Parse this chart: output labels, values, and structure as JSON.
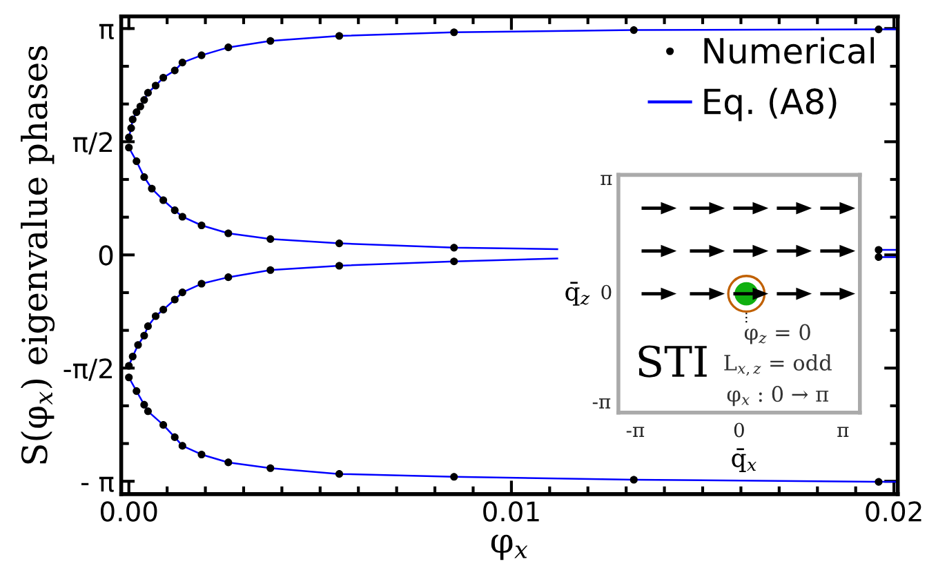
{
  "chart_data": [
    {
      "type": "scatter",
      "xlabel": "φ$_{x}$",
      "ylabel": "S(φ$_{x}$) eigenvalue phases",
      "xlim": [
        -0.0002,
        0.0201
      ],
      "ylim": [
        -3.32,
        3.31
      ],
      "xticks": [
        {
          "value": 0,
          "label": "0.00"
        },
        {
          "value": 0.001,
          "label": null
        },
        {
          "value": 0.002,
          "label": null
        },
        {
          "value": 0.003,
          "label": null
        },
        {
          "value": 0.004,
          "label": null
        },
        {
          "value": 0.005,
          "label": null
        },
        {
          "value": 0.006,
          "label": null
        },
        {
          "value": 0.007,
          "label": null
        },
        {
          "value": 0.008,
          "label": null
        },
        {
          "value": 0.009,
          "label": null
        },
        {
          "value": 0.01,
          "label": "0.01"
        },
        {
          "value": 0.011,
          "label": null
        },
        {
          "value": 0.012,
          "label": null
        },
        {
          "value": 0.013,
          "label": null
        },
        {
          "value": 0.014,
          "label": null
        },
        {
          "value": 0.015,
          "label": null
        },
        {
          "value": 0.016,
          "label": null
        },
        {
          "value": 0.017,
          "label": null
        },
        {
          "value": 0.018,
          "label": null
        },
        {
          "value": 0.019,
          "label": null
        },
        {
          "value": 0.02,
          "label": "0.02"
        }
      ],
      "yticks": [
        {
          "value": -3.1416,
          "label": "- π"
        },
        {
          "value": -2.618,
          "label": null
        },
        {
          "value": -2.0944,
          "label": null
        },
        {
          "value": -1.5708,
          "label": "-π/2"
        },
        {
          "value": -1.0472,
          "label": null
        },
        {
          "value": -0.5236,
          "label": null
        },
        0,
        {
          "value": 0.5236,
          "label": null
        },
        {
          "value": 1.0472,
          "label": null
        },
        {
          "value": 1.5708,
          "label": "π/2"
        },
        {
          "value": 2.0944,
          "label": null
        },
        {
          "value": 2.618,
          "label": null
        },
        {
          "value": 3.1416,
          "label": "π"
        }
      ],
      "grid": false,
      "legend": "top right",
      "series": [
        {
          "name": "Numerical",
          "type": "scatter",
          "color": "#000000",
          "marker": "circle",
          "x": [
            0.0196,
            0.0132,
            0.0085,
            0.0055,
            0.0037,
            0.0026,
            0.0019,
            0.0014,
            0.0012,
            0.0009,
            0.0007,
            0.0005,
            0.0004,
            0.0003,
            0.0002,
            0.0001,
            6e-05,
            0.0,
            0.0196,
            0.0085,
            0.0055,
            0.0037,
            0.0026,
            0.0019,
            0.0014,
            0.0012,
            0.0009,
            0.0006,
            0.0004,
            0.0002,
            0.0,
            0.0196,
            0.0085,
            0.0055,
            0.0037,
            0.0026,
            0.0019,
            0.0014,
            0.0012,
            0.0009,
            0.0007,
            0.0005,
            0.0004,
            0.00024,
            0.0001,
            0.0,
            0.0,
            0.0002,
            0.0004,
            0.0005,
            0.0009,
            0.0012,
            0.0014,
            0.0019,
            0.0026,
            0.0037,
            0.0055,
            0.0085,
            0.0132,
            0.0196
          ],
          "values": [
            3.13,
            3.12,
            3.09,
            3.04,
            2.97,
            2.88,
            2.77,
            2.67,
            2.56,
            2.46,
            2.35,
            2.25,
            2.15,
            2.06,
            1.98,
            1.88,
            1.76,
            1.63,
            0.07,
            0.1,
            0.16,
            0.22,
            0.3,
            0.41,
            0.53,
            0.62,
            0.76,
            0.92,
            1.08,
            1.3,
            1.49,
            -0.03,
            -0.09,
            -0.15,
            -0.21,
            -0.31,
            -0.4,
            -0.52,
            -0.62,
            -0.76,
            -0.85,
            -0.99,
            -1.12,
            -1.25,
            -1.41,
            -1.54,
            -1.7,
            -1.89,
            -2.08,
            -2.17,
            -2.36,
            -2.53,
            -2.65,
            -2.77,
            -2.88,
            -2.96,
            -3.04,
            -3.08,
            -3.12,
            -3.15
          ]
        },
        {
          "name": "Eq. (A8)",
          "type": "line",
          "color": "#0000ff",
          "marker": "none",
          "line_style": "solid",
          "x": [
            0.0,
            6e-05,
            0.0001,
            0.0002,
            0.0003,
            0.0004,
            0.0005,
            0.0007,
            0.0009,
            0.0012,
            0.0014,
            0.0019,
            0.0026,
            0.0037,
            0.0055,
            0.0085,
            0.0132,
            0.0196,
            0.0201
          ],
          "values": [
            1.63,
            1.76,
            1.88,
            1.98,
            2.06,
            2.15,
            2.25,
            2.35,
            2.46,
            2.56,
            2.67,
            2.77,
            2.88,
            2.97,
            3.04,
            3.09,
            3.12,
            3.13,
            3.13
          ]
        },
        {
          "type": "line",
          "color": "#0000ff",
          "marker": "none",
          "line_style": "solid",
          "x": [
            0.0,
            0.0002,
            0.0004,
            0.0006,
            0.0009,
            0.0012,
            0.0014,
            0.0019,
            0.0026,
            0.0037,
            0.0055,
            0.0085,
            0.0112,
            null,
            0.0196,
            0.0201
          ],
          "values": [
            1.49,
            1.3,
            1.08,
            0.92,
            0.76,
            0.62,
            0.53,
            0.41,
            0.3,
            0.22,
            0.16,
            0.1,
            0.08,
            null,
            0.07,
            0.07
          ]
        },
        {
          "type": "line",
          "color": "#0000ff",
          "marker": "none",
          "line_style": "solid",
          "x": [
            0.0,
            0.0001,
            0.00024,
            0.0004,
            0.0005,
            0.0007,
            0.0009,
            0.0012,
            0.0014,
            0.0019,
            0.0026,
            0.0037,
            0.0055,
            0.0085,
            0.0112,
            null,
            0.0196,
            0.0201
          ],
          "values": [
            -1.54,
            -1.41,
            -1.25,
            -1.12,
            -0.99,
            -0.85,
            -0.76,
            -0.62,
            -0.52,
            -0.4,
            -0.31,
            -0.21,
            -0.15,
            -0.09,
            -0.05,
            null,
            -0.03,
            -0.03
          ]
        },
        {
          "type": "line",
          "color": "#0000ff",
          "marker": "none",
          "line_style": "solid",
          "x": [
            0.0,
            0.0002,
            0.0004,
            0.0005,
            0.0009,
            0.0012,
            0.0014,
            0.0019,
            0.0026,
            0.0037,
            0.0055,
            0.0085,
            0.0132,
            0.0196,
            0.0201
          ],
          "values": [
            -1.7,
            -1.89,
            -2.08,
            -2.17,
            -2.36,
            -2.53,
            -2.65,
            -2.77,
            -2.88,
            -2.96,
            -3.04,
            -3.08,
            -3.12,
            -3.15,
            -3.15
          ]
        }
      ]
    },
    {
      "type": "other",
      "xlabel": "q̄$_{x}$",
      "ylabel": "q̄$_{z}$",
      "annotations": [
        "π",
        "0",
        "-π",
        "-π",
        "0",
        "π",
        "STI",
        "φ$_{z}$ = 0",
        "L$_{x,z}$ = odd",
        "φ$_{x}$ : 0 → π"
      ]
    }
  ]
}
